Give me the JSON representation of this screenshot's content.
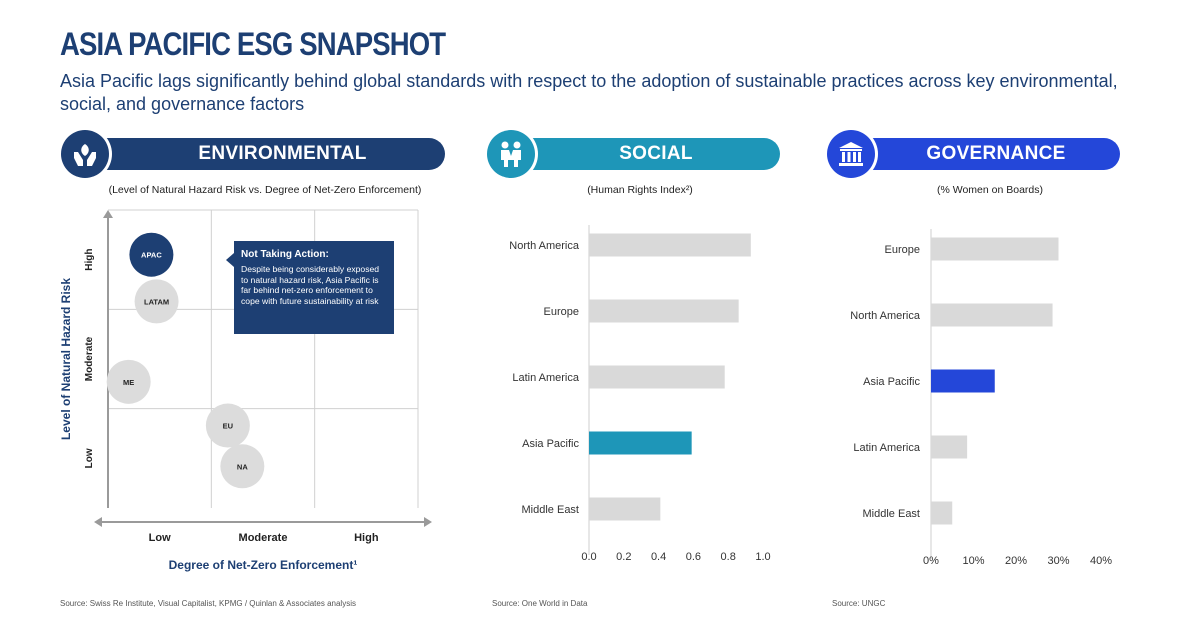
{
  "title": "ASIA PACIFIC ESG SNAPSHOT",
  "subtitle": "Asia Pacific lags significantly behind global standards with respect to the adoption of sustainable practices across key environmental, social, and governance factors",
  "colors": {
    "navy": "#1d3f73",
    "teal": "#1e96b8",
    "blue": "#2447d9",
    "bar_gray": "#d9d9d9",
    "bubble_gray": "#dcdcdc"
  },
  "environmental": {
    "banner": "ENVIRONMENTAL",
    "icon": "hands-leaf-icon",
    "subtitle": "(Level of Natural Hazard Risk vs. Degree of Net-Zero Enforcement)",
    "callout": {
      "title": "Not Taking Action:",
      "body": "Despite being considerably exposed to natural hazard risk, Asia Pacific is far behind net-zero enforcement to cope with future sustainability at risk"
    },
    "source": "Source: Swiss Re Institute, Visual Capitalist, KPMG / Quinlan & Associates analysis"
  },
  "social": {
    "banner": "SOCIAL",
    "icon": "people-handshake-icon",
    "subtitle": "(Human Rights Index²)",
    "source": "Source: One World in Data"
  },
  "governance": {
    "banner": "GOVERNANCE",
    "icon": "institution-building-icon",
    "subtitle": "(% Women on Boards)",
    "source": "Source: UNGC"
  },
  "chart_data": [
    {
      "type": "scatter",
      "xlabel": "Degree of Net-Zero Enforcement¹",
      "ylabel": "Level of Natural Hazard Risk",
      "x_tick_labels": [
        "Low",
        "Moderate",
        "High"
      ],
      "y_tick_labels": [
        "Low",
        "Moderate",
        "High"
      ],
      "xlim": [
        0,
        3
      ],
      "ylim": [
        0,
        3
      ],
      "grid": true,
      "points": [
        {
          "label": "APAC",
          "x": 0.42,
          "y": 2.55,
          "highlight": true
        },
        {
          "label": "LATAM",
          "x": 0.47,
          "y": 2.08,
          "highlight": false
        },
        {
          "label": "ME",
          "x": 0.2,
          "y": 1.27,
          "highlight": false
        },
        {
          "label": "EU",
          "x": 1.16,
          "y": 0.83,
          "highlight": false
        },
        {
          "label": "NA",
          "x": 1.3,
          "y": 0.42,
          "highlight": false
        }
      ]
    },
    {
      "type": "bar",
      "orientation": "horizontal",
      "categories": [
        "North America",
        "Europe",
        "Latin America",
        "Asia Pacific",
        "Middle East"
      ],
      "values": [
        0.93,
        0.86,
        0.78,
        0.59,
        0.41
      ],
      "highlight": "Asia Pacific",
      "xlim": [
        0,
        1.0
      ],
      "x_ticks": [
        "0.0",
        "0.2",
        "0.4",
        "0.6",
        "0.8",
        "1.0"
      ]
    },
    {
      "type": "bar",
      "orientation": "horizontal",
      "categories": [
        "Europe",
        "North America",
        "Asia Pacific",
        "Latin America",
        "Middle East"
      ],
      "values": [
        30,
        28.6,
        15,
        8.5,
        5
      ],
      "highlight": "Asia Pacific",
      "xlim": [
        0,
        40
      ],
      "x_ticks": [
        "0%",
        "10%",
        "20%",
        "30%",
        "40%"
      ]
    }
  ]
}
